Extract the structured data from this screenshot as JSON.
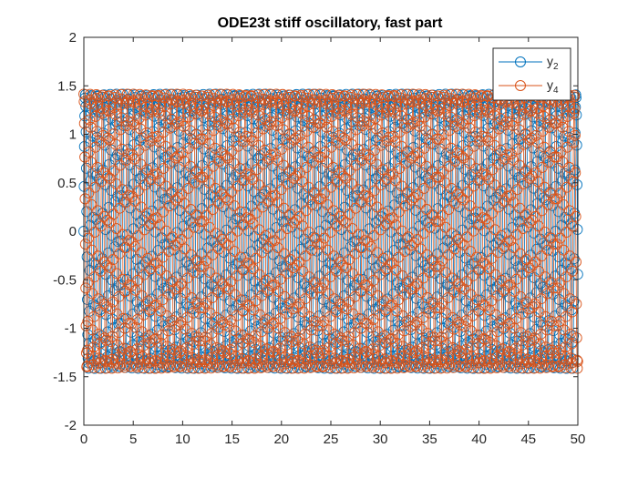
{
  "chart_data": {
    "type": "line",
    "title": "ODE23t stiff oscillatory, fast part",
    "xlabel": "",
    "ylabel": "",
    "xlim": [
      0,
      50
    ],
    "ylim": [
      -2,
      2
    ],
    "xticks": [
      "0",
      "5",
      "10",
      "15",
      "20",
      "25",
      "30",
      "35",
      "40",
      "45",
      "50"
    ],
    "yticks": [
      "-2",
      "-1.5",
      "-1",
      "-0.5",
      "0",
      "0.5",
      "1",
      "1.5",
      "2"
    ],
    "marker": "circle",
    "grid": false,
    "legend_position": "top-right",
    "series": [
      {
        "name": "y",
        "subscript": "2",
        "color": "#0072BD",
        "amplitude": 1.4142,
        "angular_frequency": 10,
        "phase": 0,
        "x_step": 0.0333,
        "x_start": 0,
        "x_end": 50
      },
      {
        "name": "y",
        "subscript": "4",
        "color": "#D95319",
        "amplitude": 1.4142,
        "angular_frequency": 10,
        "phase": 1.5708,
        "x_step": 0.0333,
        "x_start": 0,
        "x_end": 50
      }
    ]
  }
}
